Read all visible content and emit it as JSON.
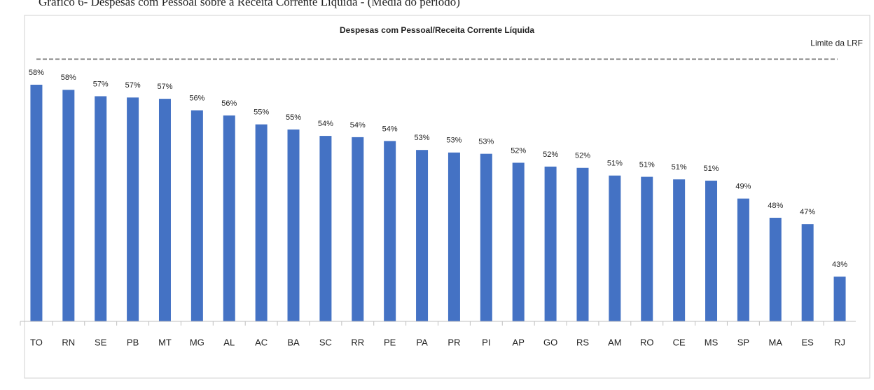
{
  "chart_data": {
    "type": "bar",
    "caption": "Gráfico 6- Despesas com Pessoal sobre a Receita Corrente Líquida - (Média do período)",
    "title": "Despesas com Pessoal/Receita Corrente Líquida",
    "categories": [
      "TO",
      "RN",
      "SE",
      "PB",
      "MT",
      "MG",
      "AL",
      "AC",
      "BA",
      "SC",
      "RR",
      "PE",
      "PA",
      "PR",
      "PI",
      "AP",
      "GO",
      "RS",
      "AM",
      "RO",
      "CE",
      "MS",
      "SP",
      "MA",
      "ES",
      "RJ"
    ],
    "values": [
      58.0,
      57.6,
      57.1,
      57.0,
      56.9,
      56.0,
      55.6,
      54.9,
      54.5,
      54.0,
      53.9,
      53.6,
      52.9,
      52.7,
      52.6,
      51.9,
      51.6,
      51.5,
      50.9,
      50.8,
      50.6,
      50.5,
      49.1,
      47.6,
      47.1,
      43.0
    ],
    "value_labels": [
      "58%",
      "58%",
      "57%",
      "57%",
      "57%",
      "56%",
      "56%",
      "55%",
      "55%",
      "54%",
      "54%",
      "54%",
      "53%",
      "53%",
      "53%",
      "52%",
      "52%",
      "52%",
      "51%",
      "51%",
      "51%",
      "51%",
      "49%",
      "48%",
      "47%",
      "43%"
    ],
    "color": "#4472c4",
    "ylim": [
      39.5,
      62
    ],
    "limit": {
      "label": "Limite da LRF",
      "value": 60
    }
  }
}
